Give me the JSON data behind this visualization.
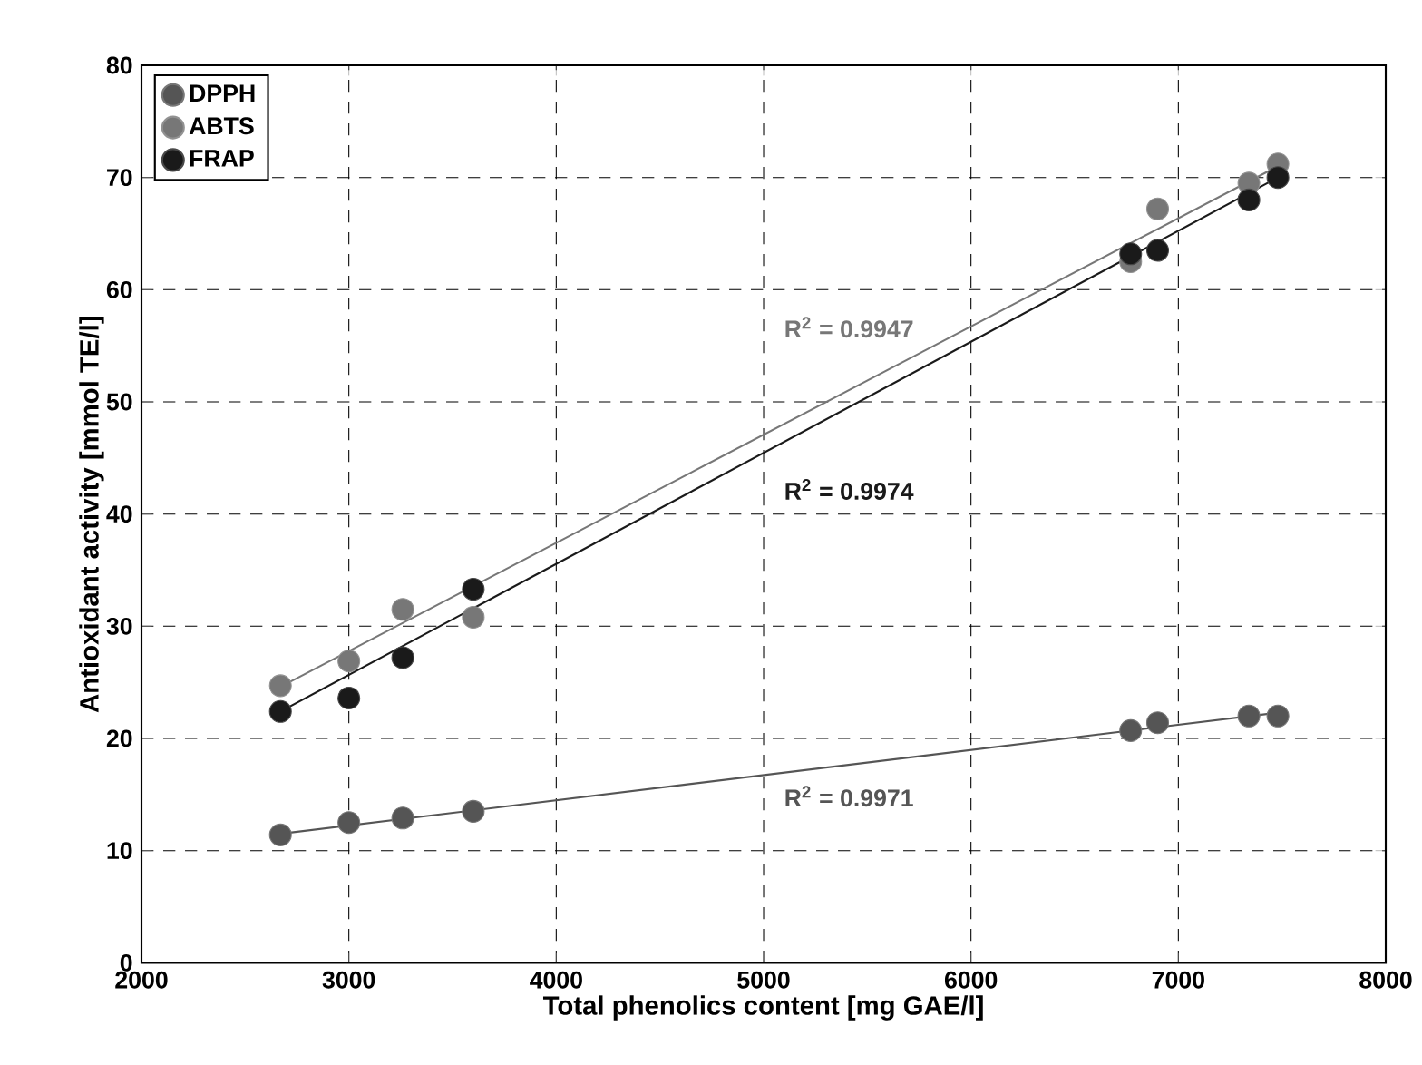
{
  "chart_data": {
    "type": "scatter",
    "xlabel": "Total phenolics content [mg GAE/l]",
    "ylabel": "Antioxidant activity [mmol TE/l]",
    "xlim": [
      2000,
      8000
    ],
    "xticks": [
      2000,
      3000,
      4000,
      5000,
      6000,
      7000,
      8000
    ],
    "ylim": [
      0,
      80
    ],
    "yticks": [
      0,
      10,
      20,
      30,
      40,
      50,
      60,
      70,
      80
    ],
    "grid": true,
    "legend": "top left",
    "series": [
      {
        "name": "DPPH",
        "marker": "circle",
        "color": "#555555",
        "x": [
          2670,
          3000,
          3260,
          3600,
          6770,
          6900,
          7340,
          7480
        ],
        "values": [
          11.4,
          12.5,
          12.9,
          13.5,
          20.7,
          21.4,
          22.0,
          22.0
        ]
      },
      {
        "name": "ABTS",
        "marker": "circle",
        "color": "#777777",
        "x": [
          2670,
          3000,
          3260,
          3600,
          6770,
          6900,
          7340,
          7480
        ],
        "values": [
          24.7,
          26.9,
          31.5,
          30.8,
          62.5,
          67.2,
          69.5,
          71.2
        ]
      },
      {
        "name": "FRAP",
        "marker": "circle",
        "color": "#1a1a1a",
        "x": [
          2670,
          3000,
          3260,
          3600,
          6770,
          6900,
          7340,
          7480
        ],
        "values": [
          22.4,
          23.6,
          27.2,
          33.3,
          63.2,
          63.5,
          68.0,
          70.0
        ]
      },
      {
        "type": "line",
        "marker": "none",
        "color": "#777777",
        "x": [
          2670,
          7480
        ],
        "values": [
          24.6,
          71.0
        ]
      },
      {
        "type": "line",
        "marker": "none",
        "color": "#1a1a1a",
        "x": [
          2670,
          7480
        ],
        "values": [
          22.4,
          70.0
        ]
      },
      {
        "type": "line",
        "marker": "none",
        "color": "#555555",
        "x": [
          2670,
          7480
        ],
        "values": [
          11.5,
          22.3
        ]
      }
    ],
    "annotations": [
      "R$^{2}$ = 0.9947",
      "R$^{2}$ = 0.9974",
      "R$^{2}$ = 0.9971"
    ]
  }
}
